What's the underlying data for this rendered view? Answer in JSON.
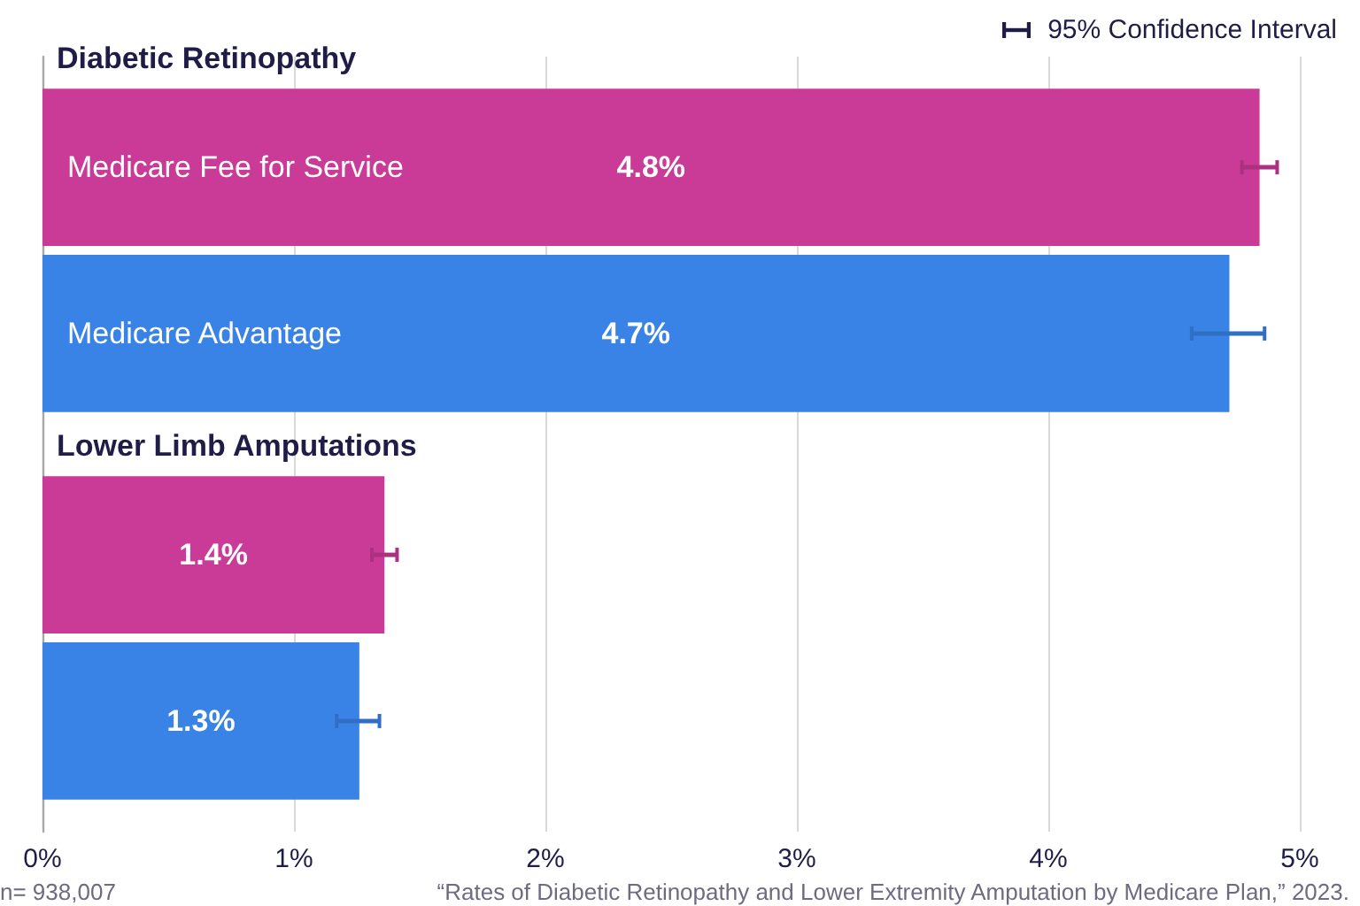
{
  "chart_data": {
    "type": "bar",
    "orientation": "horizontal",
    "categories": [
      "Diabetic Retinopathy",
      "Lower Limb Amputations"
    ],
    "series": [
      {
        "name": "Medicare Fee for Service",
        "color": "#c93b96",
        "values": [
          4.84,
          1.36
        ],
        "errors": [
          [
            4.77,
            4.91
          ],
          [
            1.31,
            1.41
          ]
        ],
        "value_labels": [
          "4.8%",
          "1.4%"
        ]
      },
      {
        "name": "Medicare Advantage",
        "color": "#3a83e6",
        "values": [
          4.72,
          1.26
        ],
        "errors": [
          [
            4.57,
            4.86
          ],
          [
            1.17,
            1.34
          ]
        ],
        "value_labels": [
          "4.7%",
          "1.3%"
        ]
      }
    ],
    "xlim": [
      0,
      5
    ],
    "xticks": [
      {
        "value": 0,
        "label": "0%"
      },
      {
        "value": 1,
        "label": "1%"
      },
      {
        "value": 2,
        "label": "2%"
      },
      {
        "value": 3,
        "label": "3%"
      },
      {
        "value": 4,
        "label": "4%"
      },
      {
        "value": 5,
        "label": "5%"
      }
    ],
    "grid": "x",
    "annotations": [
      "95% Confidence Interval",
      "n= 938,007",
      "“Rates of Diabetic Retinopathy and Lower Extremity Amputation by Medicare Plan,” 2023."
    ]
  }
}
